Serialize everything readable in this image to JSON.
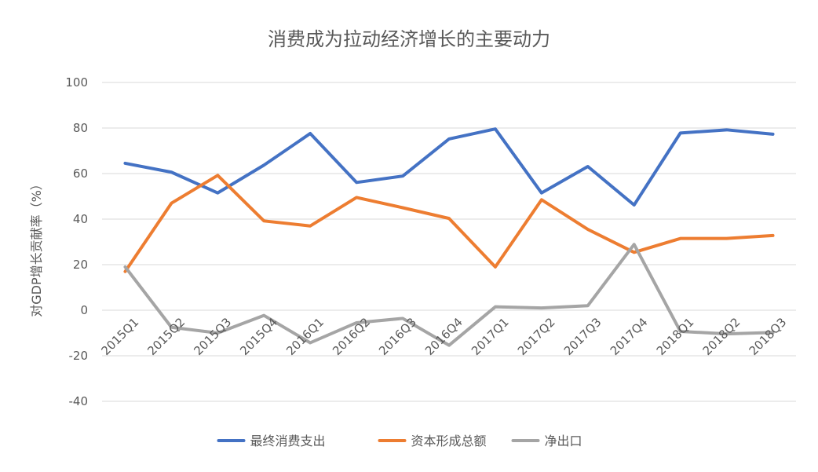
{
  "chart_data": {
    "type": "line",
    "title": "消费成为拉动经济增长的主要动力",
    "xlabel": "",
    "ylabel": "对GDP增长贡献率（%）",
    "ylim": [
      -40,
      100
    ],
    "yticks": [
      100,
      80,
      60,
      40,
      20,
      0,
      -20,
      -40
    ],
    "grid": true,
    "legend_position": "bottom",
    "categories": [
      "2015Q1",
      "2015Q2",
      "2015Q3",
      "2015Q4",
      "2016Q1",
      "2016Q2",
      "2016Q3",
      "2016Q4",
      "2017Q1",
      "2017Q2",
      "2017Q3",
      "2017Q4",
      "2018Q1",
      "2018Q2",
      "2018Q3"
    ],
    "series": [
      {
        "name": "最终消费支出",
        "color": "#4472c4",
        "values": [
          64.5,
          60.6,
          51.5,
          63.7,
          77.6,
          56.1,
          58.9,
          75.2,
          79.6,
          51.5,
          63.1,
          46.2,
          77.8,
          79.2,
          77.3
        ]
      },
      {
        "name": "资本形成总额",
        "color": "#ed7d31",
        "values": [
          17.0,
          47.0,
          59.2,
          39.2,
          37.0,
          49.5,
          45.0,
          40.3,
          19.0,
          48.5,
          35.5,
          25.4,
          31.5,
          31.5,
          32.8
        ]
      },
      {
        "name": "净出口",
        "color": "#a5a5a5",
        "values": [
          19.0,
          -7.5,
          -10.0,
          -2.3,
          -14.3,
          -5.5,
          -3.6,
          -15.4,
          1.5,
          1.0,
          2.0,
          28.9,
          -9.3,
          -10.4,
          -9.8
        ]
      }
    ]
  }
}
